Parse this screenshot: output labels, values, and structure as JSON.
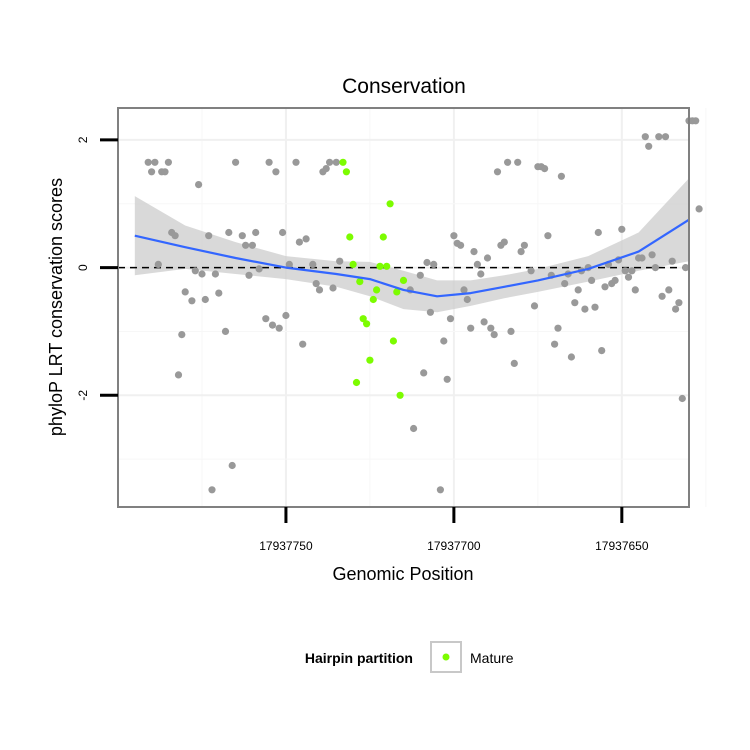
{
  "chart_data": {
    "type": "scatter",
    "title": "Conservation",
    "xlabel": "Genomic Position",
    "ylabel": "phyloP LRT conservation scores",
    "x_reversed": true,
    "xlim": [
      17937800,
      17937630
    ],
    "ylim": [
      -3.75,
      2.5
    ],
    "xticks": [
      17937750,
      17937700,
      17937650
    ],
    "xtick_labels": [
      "17937750",
      "17937700",
      "17937650"
    ],
    "yticks": [
      2,
      0,
      -2
    ],
    "ytick_labels": [
      "2",
      "0",
      "-2"
    ],
    "grid": true,
    "reference_line": {
      "y": 0,
      "style": "dashed"
    },
    "legend": {
      "title": "Hairpin partition",
      "placement": "bottom",
      "entries": [
        {
          "label": "Mature",
          "color": "#7cfc00"
        }
      ]
    },
    "colors": {
      "background": "#ffffff",
      "other_points": "#999999",
      "mature_points": "#7cfc00",
      "smooth_line": "#3366ff",
      "confidence_band": "#cccccc",
      "frame": "#808080"
    },
    "series": [
      {
        "name": "",
        "color": "#999999",
        "points": [
          [
            17937791,
            1.65
          ],
          [
            17937789,
            1.65
          ],
          [
            17937790,
            1.5
          ],
          [
            17937787,
            1.5
          ],
          [
            17937786,
            1.5
          ],
          [
            17937785,
            1.65
          ],
          [
            17937788,
            0.05
          ],
          [
            17937784,
            0.55
          ],
          [
            17937783,
            0.5
          ],
          [
            17937780,
            -0.38
          ],
          [
            17937782,
            -1.68
          ],
          [
            17937781,
            -1.05
          ],
          [
            17937778,
            -0.52
          ],
          [
            17937777,
            -0.05
          ],
          [
            17937776,
            1.3
          ],
          [
            17937775,
            -0.1
          ],
          [
            17937774,
            -0.5
          ],
          [
            17937773,
            0.5
          ],
          [
            17937772,
            -3.48
          ],
          [
            17937771,
            -0.1
          ],
          [
            17937770,
            -0.4
          ],
          [
            17937768,
            -1.0
          ],
          [
            17937766,
            -3.1
          ],
          [
            17937765,
            1.65
          ],
          [
            17937767,
            0.55
          ],
          [
            17937763,
            0.5
          ],
          [
            17937762,
            0.35
          ],
          [
            17937761,
            -0.12
          ],
          [
            17937760,
            0.35
          ],
          [
            17937759,
            0.55
          ],
          [
            17937758,
            -0.02
          ],
          [
            17937756,
            -0.8
          ],
          [
            17937755,
            1.65
          ],
          [
            17937754,
            -0.9
          ],
          [
            17937753,
            1.5
          ],
          [
            17937752,
            -0.95
          ],
          [
            17937751,
            0.55
          ],
          [
            17937750,
            -0.75
          ],
          [
            17937749,
            0.05
          ],
          [
            17937747,
            1.65
          ],
          [
            17937746,
            0.4
          ],
          [
            17937745,
            -1.2
          ],
          [
            17937744,
            0.45
          ],
          [
            17937742,
            0.05
          ],
          [
            17937741,
            -0.25
          ],
          [
            17937740,
            -0.35
          ],
          [
            17937739,
            1.5
          ],
          [
            17937738,
            1.55
          ],
          [
            17937737,
            1.65
          ],
          [
            17937736,
            -0.32
          ],
          [
            17937735,
            1.65
          ],
          [
            17937734,
            0.1
          ],
          [
            17937713,
            -0.35
          ],
          [
            17937712,
            -2.52
          ],
          [
            17937710,
            -0.12
          ],
          [
            17937709,
            -1.65
          ],
          [
            17937708,
            0.08
          ],
          [
            17937707,
            -0.7
          ],
          [
            17937706,
            0.05
          ],
          [
            17937704,
            -3.48
          ],
          [
            17937703,
            -1.15
          ],
          [
            17937702,
            -1.75
          ],
          [
            17937701,
            -0.8
          ],
          [
            17937700,
            0.5
          ],
          [
            17937699,
            0.38
          ],
          [
            17937698,
            0.35
          ],
          [
            17937697,
            -0.35
          ],
          [
            17937696,
            -0.5
          ],
          [
            17937695,
            -0.95
          ],
          [
            17937694,
            0.25
          ],
          [
            17937693,
            0.05
          ],
          [
            17937692,
            -0.1
          ],
          [
            17937691,
            -0.85
          ],
          [
            17937690,
            0.15
          ],
          [
            17937689,
            -0.95
          ],
          [
            17937688,
            -1.05
          ],
          [
            17937687,
            1.5
          ],
          [
            17937686,
            0.35
          ],
          [
            17937685,
            0.4
          ],
          [
            17937684,
            1.65
          ],
          [
            17937683,
            -1.0
          ],
          [
            17937682,
            -1.5
          ],
          [
            17937681,
            1.65
          ],
          [
            17937680,
            0.25
          ],
          [
            17937679,
            0.35
          ],
          [
            17937677,
            -0.05
          ],
          [
            17937676,
            -0.6
          ],
          [
            17937675,
            1.58
          ],
          [
            17937674,
            1.58
          ],
          [
            17937673,
            1.55
          ],
          [
            17937672,
            0.5
          ],
          [
            17937671,
            -0.12
          ],
          [
            17937670,
            -1.2
          ],
          [
            17937669,
            -0.95
          ],
          [
            17937668,
            1.43
          ],
          [
            17937667,
            -0.25
          ],
          [
            17937666,
            -0.1
          ],
          [
            17937665,
            -1.4
          ],
          [
            17937664,
            -0.55
          ],
          [
            17937663,
            -0.35
          ],
          [
            17937662,
            -0.05
          ],
          [
            17937661,
            -0.65
          ],
          [
            17937660,
            0.0
          ],
          [
            17937659,
            -0.2
          ],
          [
            17937658,
            -0.62
          ],
          [
            17937657,
            0.55
          ],
          [
            17937656,
            -1.3
          ],
          [
            17937655,
            -0.3
          ],
          [
            17937654,
            0.05
          ],
          [
            17937653,
            -0.25
          ],
          [
            17937652,
            -0.2
          ],
          [
            17937651,
            0.12
          ],
          [
            17937650,
            0.6
          ],
          [
            17937649,
            -0.05
          ],
          [
            17937648,
            -0.15
          ],
          [
            17937647,
            -0.05
          ],
          [
            17937646,
            -0.35
          ],
          [
            17937645,
            0.15
          ],
          [
            17937644,
            0.15
          ],
          [
            17937643,
            2.05
          ],
          [
            17937642,
            1.9
          ],
          [
            17937641,
            0.2
          ],
          [
            17937640,
            0.0
          ],
          [
            17937639,
            2.05
          ],
          [
            17937638,
            -0.45
          ],
          [
            17937637,
            2.05
          ],
          [
            17937636,
            -0.35
          ],
          [
            17937635,
            0.1
          ],
          [
            17937634,
            -0.65
          ],
          [
            17937633,
            -0.55
          ],
          [
            17937632,
            -2.05
          ],
          [
            17937631,
            0.0
          ],
          [
            17937630,
            2.3
          ],
          [
            17937629,
            2.3
          ],
          [
            17937628,
            2.3
          ],
          [
            17937627,
            0.92
          ]
        ]
      },
      {
        "name": "Mature",
        "color": "#7cfc00",
        "points": [
          [
            17937733,
            1.65
          ],
          [
            17937732,
            1.5
          ],
          [
            17937731,
            0.48
          ],
          [
            17937730,
            0.05
          ],
          [
            17937729,
            -1.8
          ],
          [
            17937728,
            -0.22
          ],
          [
            17937727,
            -0.8
          ],
          [
            17937726,
            -0.88
          ],
          [
            17937725,
            -1.45
          ],
          [
            17937724,
            -0.5
          ],
          [
            17937723,
            -0.35
          ],
          [
            17937722,
            0.02
          ],
          [
            17937721,
            0.48
          ],
          [
            17937720,
            0.02
          ],
          [
            17937719,
            1.0
          ],
          [
            17937718,
            -1.15
          ],
          [
            17937717,
            -0.38
          ],
          [
            17937716,
            -2.0
          ],
          [
            17937715,
            -0.2
          ]
        ]
      }
    ],
    "smooth": {
      "method": "loess",
      "x": [
        17937795,
        17937780,
        17937765,
        17937750,
        17937735,
        17937725,
        17937715,
        17937705,
        17937695,
        17937685,
        17937675,
        17937660,
        17937645,
        17937630
      ],
      "y": [
        0.5,
        0.32,
        0.15,
        0.0,
        -0.1,
        -0.18,
        -0.35,
        -0.45,
        -0.4,
        -0.3,
        -0.2,
        -0.02,
        0.25,
        0.75
      ],
      "lower": [
        -0.12,
        -0.02,
        -0.1,
        -0.18,
        -0.3,
        -0.45,
        -0.65,
        -0.7,
        -0.6,
        -0.48,
        -0.38,
        -0.22,
        -0.05,
        0.1
      ],
      "upper": [
        1.12,
        0.66,
        0.4,
        0.18,
        0.1,
        0.09,
        -0.05,
        -0.2,
        -0.2,
        -0.12,
        -0.02,
        0.18,
        0.55,
        1.4
      ]
    }
  }
}
